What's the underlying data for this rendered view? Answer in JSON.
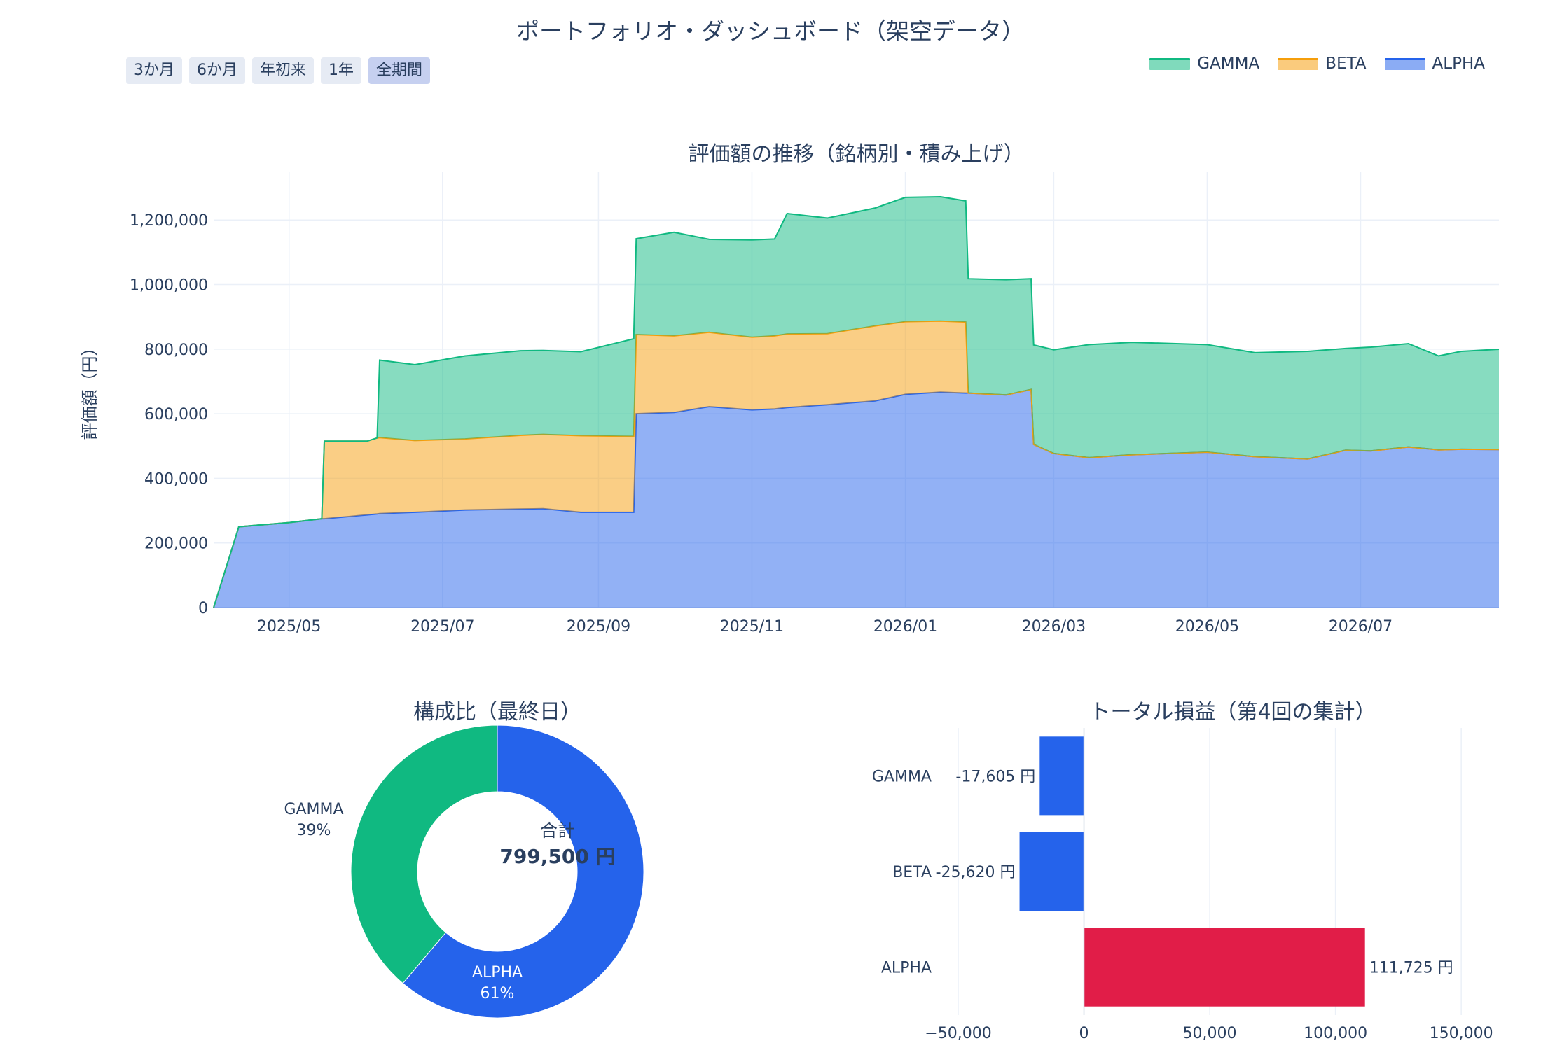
{
  "title": "ポートフォリオ・ダッシュボード（架空データ）",
  "range_buttons": [
    {
      "label": "3か月",
      "active": false
    },
    {
      "label": "6か月",
      "active": false
    },
    {
      "label": "年初来",
      "active": false
    },
    {
      "label": "1年",
      "active": false
    },
    {
      "label": "全期間",
      "active": true
    }
  ],
  "legend": [
    {
      "name": "GAMMA",
      "color": "#10b981"
    },
    {
      "name": "BETA",
      "color": "#f59e0b"
    },
    {
      "name": "ALPHA",
      "color": "#2563eb"
    }
  ],
  "chart_data": [
    {
      "type": "area",
      "title": "評価額の推移（銘柄別・積み上げ）",
      "xlabel": "",
      "ylabel": "評価額（円）",
      "stacked": true,
      "xlim": [
        "2025-04-01",
        "2026-08-25"
      ],
      "ylim": [
        0,
        1350000
      ],
      "y_ticks": [
        0,
        200000,
        400000,
        600000,
        800000,
        1000000,
        1200000
      ],
      "y_tick_labels": [
        "0",
        "200,000",
        "400,000",
        "600,000",
        "800,000",
        "1,000,000",
        "1,200,000"
      ],
      "x_ticks": [
        "2025-05-01",
        "2025-07-01",
        "2025-09-01",
        "2025-11-01",
        "2026-01-01",
        "2026-03-01",
        "2026-05-01",
        "2026-07-01"
      ],
      "x_tick_labels": [
        "2025/05",
        "2025/07",
        "2025/09",
        "2025/11",
        "2026/01",
        "2026/03",
        "2026/05",
        "2026/07"
      ],
      "grid": true,
      "legend_position": "top-right",
      "x": [
        "2025-04-01",
        "2025-04-11",
        "2025-05-01",
        "2025-05-14",
        "2025-05-15",
        "2025-06-01",
        "2025-06-05",
        "2025-06-06",
        "2025-06-20",
        "2025-07-10",
        "2025-08-01",
        "2025-08-10",
        "2025-08-25",
        "2025-09-15",
        "2025-09-16",
        "2025-10-01",
        "2025-10-15",
        "2025-11-01",
        "2025-11-10",
        "2025-11-15",
        "2025-12-01",
        "2025-12-20",
        "2026-01-01",
        "2026-01-15",
        "2026-01-25",
        "2026-01-26",
        "2026-02-10",
        "2026-02-20",
        "2026-02-21",
        "2026-03-01",
        "2026-03-15",
        "2026-04-01",
        "2026-05-01",
        "2026-05-20",
        "2026-06-10",
        "2026-06-25",
        "2026-07-05",
        "2026-07-20",
        "2026-08-01",
        "2026-08-10",
        "2026-08-25"
      ],
      "series": [
        {
          "name": "ALPHA",
          "color": "#2563eb",
          "values": [
            0,
            250000,
            263000,
            275000,
            275000,
            287000,
            290000,
            291000,
            295000,
            302000,
            305000,
            306000,
            295000,
            295000,
            600000,
            604000,
            622000,
            612000,
            615000,
            619000,
            628000,
            640000,
            660000,
            667000,
            664000,
            664000,
            658000,
            675000,
            505000,
            477000,
            464000,
            473000,
            481000,
            467000,
            460000,
            487000,
            485000,
            497000,
            488000,
            490000,
            489000
          ]
        },
        {
          "name": "BETA",
          "color": "#f59e0b",
          "values": [
            0,
            0,
            0,
            0,
            240000,
            228000,
            235000,
            235000,
            222000,
            220000,
            228000,
            230000,
            237000,
            235000,
            245000,
            237000,
            230000,
            225000,
            226000,
            228000,
            220000,
            232000,
            225000,
            220000,
            220000,
            0,
            0,
            0,
            0,
            0,
            0,
            0,
            0,
            0,
            0,
            0,
            0,
            0,
            0,
            0,
            0
          ]
        },
        {
          "name": "GAMMA",
          "color": "#10b981",
          "values": [
            0,
            0,
            0,
            0,
            0,
            0,
            0,
            240000,
            235000,
            257000,
            262000,
            260000,
            260000,
            302000,
            297000,
            321000,
            288000,
            301000,
            300000,
            373000,
            358000,
            365000,
            385000,
            385000,
            375000,
            354000,
            357000,
            343000,
            308000,
            321000,
            350000,
            348000,
            333000,
            322000,
            333000,
            315000,
            321000,
            320000,
            291000,
            303000,
            310500
          ]
        }
      ]
    },
    {
      "type": "pie",
      "title": "構成比（最終日）",
      "hole": true,
      "labels": [
        "ALPHA",
        "GAMMA"
      ],
      "values": [
        489000,
        310500
      ],
      "percent_labels": [
        "61%",
        "39%"
      ],
      "colors": [
        "#2563eb",
        "#10b981"
      ],
      "center_label": "合計",
      "center_value": "799,500 円"
    },
    {
      "type": "bar",
      "orientation": "horizontal",
      "title": "トータル損益（第4回の集計）",
      "categories": [
        "GAMMA",
        "BETA",
        "ALPHA"
      ],
      "values": [
        -17605,
        -25620,
        111725
      ],
      "value_labels": [
        "-17,605 円",
        "-25,620 円",
        "111,725 円"
      ],
      "colors": [
        "#2563eb",
        "#2563eb",
        "#e11d48"
      ],
      "xlim": [
        -50000,
        165000
      ],
      "x_ticks": [
        -50000,
        0,
        50000,
        100000,
        150000
      ],
      "x_tick_labels": [
        "−50,000",
        "0",
        "50,000",
        "100,000",
        "150,000"
      ],
      "grid": true
    }
  ]
}
